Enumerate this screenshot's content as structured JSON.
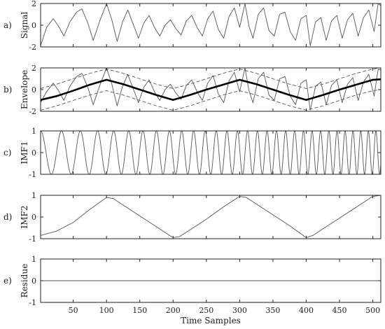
{
  "chart_data": {
    "type": "line",
    "xlabel": "Time Samples",
    "xlim": [
      1,
      512
    ],
    "x_ticks": [
      50,
      100,
      150,
      200,
      250,
      300,
      350,
      400,
      450,
      500
    ],
    "grid": false,
    "panels": [
      {
        "letter": "a)",
        "ylabel": "Signal",
        "ylim": [
          -2,
          2
        ],
        "y_ticks": [
          -2,
          0,
          2
        ],
        "series": [
          {
            "style": "thin",
            "points": [
              [
                1,
                -1.9
              ],
              [
                10,
                -0.2
              ],
              [
                20,
                0.6
              ],
              [
                28,
                -0.1
              ],
              [
                36,
                -1.0
              ],
              [
                45,
                0.3
              ],
              [
                55,
                1.2
              ],
              [
                63,
                1.5
              ],
              [
                72,
                0.2
              ],
              [
                80,
                -1.4
              ],
              [
                90,
                0.4
              ],
              [
                100,
                2.0
              ],
              [
                108,
                0.5
              ],
              [
                116,
                -1.5
              ],
              [
                124,
                0.3
              ],
              [
                132,
                1.4
              ],
              [
                140,
                0.1
              ],
              [
                148,
                -1.2
              ],
              [
                156,
                0.2
              ],
              [
                164,
                0.9
              ],
              [
                172,
                -0.2
              ],
              [
                180,
                -1.0
              ],
              [
                188,
                0.0
              ],
              [
                196,
                0.5
              ],
              [
                204,
                -0.3
              ],
              [
                212,
                -0.9
              ],
              [
                220,
                0.4
              ],
              [
                228,
                0.9
              ],
              [
                236,
                -0.2
              ],
              [
                244,
                -1.0
              ],
              [
                252,
                0.6
              ],
              [
                260,
                1.3
              ],
              [
                268,
                -0.4
              ],
              [
                276,
                -1.2
              ],
              [
                284,
                0.8
              ],
              [
                292,
                1.6
              ],
              [
                300,
                -0.2
              ],
              [
                308,
                2.0
              ],
              [
                314,
                -0.1
              ],
              [
                320,
                -1.2
              ],
              [
                328,
                1.0
              ],
              [
                336,
                1.6
              ],
              [
                344,
                -0.5
              ],
              [
                352,
                -1.0
              ],
              [
                360,
                1.0
              ],
              [
                368,
                1.2
              ],
              [
                376,
                -0.6
              ],
              [
                384,
                -1.4
              ],
              [
                392,
                0.6
              ],
              [
                400,
                0.9
              ],
              [
                406,
                -1.9
              ],
              [
                414,
                0.3
              ],
              [
                422,
                0.7
              ],
              [
                430,
                -1.4
              ],
              [
                438,
                0.4
              ],
              [
                446,
                0.9
              ],
              [
                454,
                -1.2
              ],
              [
                462,
                0.5
              ],
              [
                470,
                1.1
              ],
              [
                478,
                -1.0
              ],
              [
                486,
                0.7
              ],
              [
                494,
                1.4
              ],
              [
                502,
                -0.6
              ],
              [
                508,
                2.0
              ],
              [
                512,
                1.8
              ]
            ]
          }
        ]
      },
      {
        "letter": "b)",
        "ylabel": "Envelope",
        "ylim": [
          -2,
          2
        ],
        "y_ticks": [
          -2,
          0,
          2
        ],
        "series": [
          {
            "style": "thin",
            "points": [
              [
                1,
                -1.2
              ],
              [
                10,
                -0.2
              ],
              [
                20,
                0.6
              ],
              [
                28,
                -0.1
              ],
              [
                36,
                -1.0
              ],
              [
                45,
                0.3
              ],
              [
                55,
                1.2
              ],
              [
                63,
                1.5
              ],
              [
                72,
                0.2
              ],
              [
                80,
                -1.4
              ],
              [
                90,
                0.4
              ],
              [
                100,
                2.0
              ],
              [
                108,
                0.5
              ],
              [
                116,
                -1.5
              ],
              [
                124,
                0.3
              ],
              [
                132,
                1.4
              ],
              [
                140,
                0.1
              ],
              [
                148,
                -1.2
              ],
              [
                156,
                0.2
              ],
              [
                164,
                0.9
              ],
              [
                172,
                -0.2
              ],
              [
                180,
                -1.0
              ],
              [
                188,
                0.0
              ],
              [
                196,
                0.5
              ],
              [
                204,
                -0.3
              ],
              [
                212,
                -0.9
              ],
              [
                220,
                0.4
              ],
              [
                228,
                0.9
              ],
              [
                236,
                -0.2
              ],
              [
                244,
                -1.0
              ],
              [
                252,
                0.6
              ],
              [
                260,
                1.3
              ],
              [
                268,
                -0.4
              ],
              [
                276,
                -1.2
              ],
              [
                284,
                0.8
              ],
              [
                292,
                1.6
              ],
              [
                300,
                -0.2
              ],
              [
                308,
                2.0
              ],
              [
                314,
                -0.1
              ],
              [
                320,
                -1.2
              ],
              [
                328,
                1.0
              ],
              [
                336,
                1.6
              ],
              [
                344,
                -0.5
              ],
              [
                352,
                -1.0
              ],
              [
                360,
                1.0
              ],
              [
                368,
                1.2
              ],
              [
                376,
                -0.6
              ],
              [
                384,
                -1.4
              ],
              [
                392,
                0.6
              ],
              [
                400,
                0.9
              ],
              [
                406,
                -1.9
              ],
              [
                414,
                0.3
              ],
              [
                422,
                0.7
              ],
              [
                430,
                -1.4
              ],
              [
                438,
                0.4
              ],
              [
                446,
                0.9
              ],
              [
                454,
                -1.2
              ],
              [
                462,
                0.5
              ],
              [
                470,
                1.1
              ],
              [
                478,
                -1.0
              ],
              [
                486,
                0.7
              ],
              [
                494,
                1.4
              ],
              [
                502,
                -0.6
              ],
              [
                508,
                1.9
              ],
              [
                512,
                1.8
              ]
            ]
          },
          {
            "style": "thick",
            "points": [
              [
                1,
                -0.95
              ],
              [
                25,
                -0.6
              ],
              [
                50,
                -0.1
              ],
              [
                75,
                0.45
              ],
              [
                100,
                0.9
              ],
              [
                125,
                0.5
              ],
              [
                150,
                0.0
              ],
              [
                175,
                -0.5
              ],
              [
                200,
                -0.95
              ],
              [
                225,
                -0.5
              ],
              [
                250,
                0.0
              ],
              [
                275,
                0.45
              ],
              [
                300,
                0.9
              ],
              [
                325,
                0.5
              ],
              [
                350,
                0.0
              ],
              [
                375,
                -0.5
              ],
              [
                400,
                -0.95
              ],
              [
                425,
                -0.5
              ],
              [
                450,
                0.0
              ],
              [
                475,
                0.45
              ],
              [
                500,
                0.9
              ],
              [
                512,
                0.95
              ]
            ]
          },
          {
            "style": "dashed",
            "points": [
              [
                1,
                0.1
              ],
              [
                25,
                0.5
              ],
              [
                50,
                1.0
              ],
              [
                75,
                1.5
              ],
              [
                100,
                1.9
              ],
              [
                125,
                1.5
              ],
              [
                150,
                1.0
              ],
              [
                175,
                0.5
              ],
              [
                200,
                0.1
              ],
              [
                225,
                0.5
              ],
              [
                250,
                1.0
              ],
              [
                275,
                1.5
              ],
              [
                300,
                1.9
              ],
              [
                325,
                1.5
              ],
              [
                350,
                1.0
              ],
              [
                375,
                0.5
              ],
              [
                400,
                0.1
              ],
              [
                425,
                0.5
              ],
              [
                450,
                1.0
              ],
              [
                475,
                1.5
              ],
              [
                500,
                1.9
              ],
              [
                512,
                2.0
              ]
            ]
          },
          {
            "style": "dashed",
            "points": [
              [
                1,
                -1.9
              ],
              [
                25,
                -1.5
              ],
              [
                50,
                -1.0
              ],
              [
                75,
                -0.5
              ],
              [
                100,
                -0.1
              ],
              [
                125,
                -0.5
              ],
              [
                150,
                -1.0
              ],
              [
                175,
                -1.5
              ],
              [
                200,
                -1.9
              ],
              [
                225,
                -1.5
              ],
              [
                250,
                -1.0
              ],
              [
                275,
                -0.5
              ],
              [
                300,
                -0.1
              ],
              [
                325,
                -0.5
              ],
              [
                350,
                -1.0
              ],
              [
                375,
                -1.5
              ],
              [
                400,
                -1.9
              ],
              [
                425,
                -1.5
              ],
              [
                450,
                -1.0
              ],
              [
                475,
                -0.5
              ],
              [
                500,
                -0.1
              ],
              [
                512,
                0.0
              ]
            ]
          }
        ]
      },
      {
        "letter": "c)",
        "ylabel": "IMF1",
        "ylim": [
          -1,
          1
        ],
        "y_ticks": [
          -1,
          0,
          1
        ],
        "series": [
          {
            "style": "thin",
            "chirp": {
              "f0": 0.03,
              "f1": 0.09,
              "amplitude": 1.0,
              "phase": 0.0
            }
          }
        ]
      },
      {
        "letter": "d)",
        "ylabel": "IMF2",
        "ylim": [
          -1,
          1
        ],
        "y_ticks": [
          -1,
          0,
          1
        ],
        "series": [
          {
            "style": "thin",
            "points": [
              [
                1,
                -0.85
              ],
              [
                25,
                -0.65
              ],
              [
                50,
                -0.25
              ],
              [
                75,
                0.35
              ],
              [
                100,
                0.9
              ],
              [
                110,
                0.85
              ],
              [
                125,
                0.55
              ],
              [
                150,
                0.05
              ],
              [
                175,
                -0.45
              ],
              [
                200,
                -0.95
              ],
              [
                210,
                -0.9
              ],
              [
                225,
                -0.6
              ],
              [
                250,
                -0.1
              ],
              [
                275,
                0.45
              ],
              [
                300,
                0.95
              ],
              [
                310,
                0.9
              ],
              [
                325,
                0.6
              ],
              [
                350,
                0.1
              ],
              [
                375,
                -0.4
              ],
              [
                400,
                -0.95
              ],
              [
                410,
                -0.85
              ],
              [
                425,
                -0.55
              ],
              [
                450,
                -0.05
              ],
              [
                475,
                0.45
              ],
              [
                500,
                0.95
              ],
              [
                512,
                1.0
              ]
            ]
          }
        ]
      },
      {
        "letter": "e)",
        "ylabel": "Residue",
        "ylim": [
          -1,
          1
        ],
        "y_ticks": [
          -1,
          0,
          1
        ],
        "series": [
          {
            "style": "thin",
            "points": [
              [
                1,
                0.0
              ],
              [
                512,
                0.0
              ]
            ]
          }
        ]
      }
    ]
  }
}
